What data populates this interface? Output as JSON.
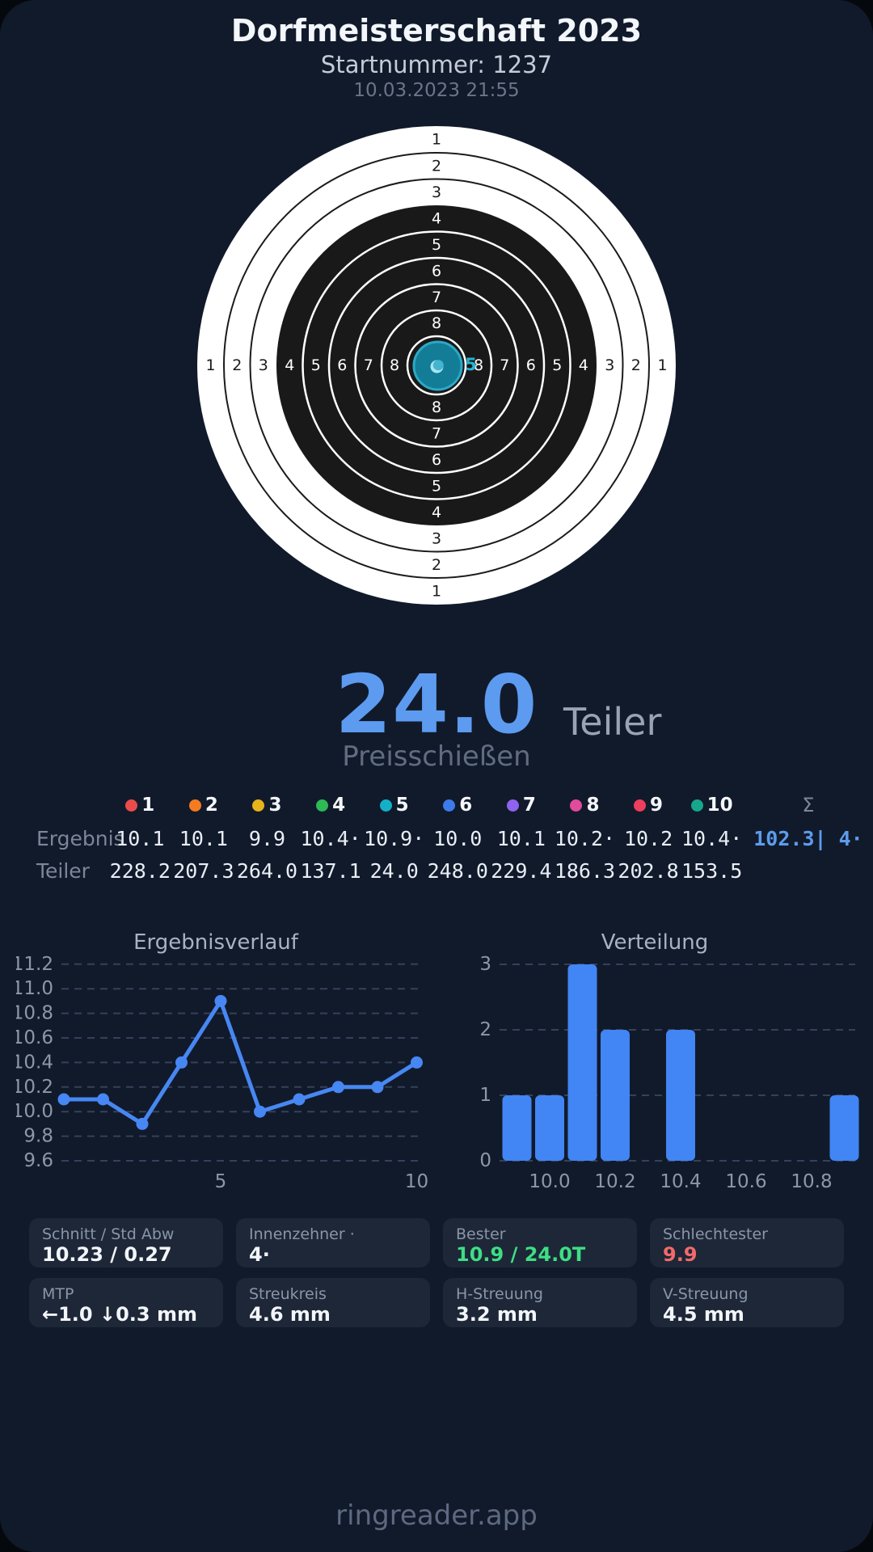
{
  "header": {
    "title": "Dorfmeisterschaft 2023",
    "subtitle": "Startnummer: 1237",
    "datetime": "10.03.2023 21:55"
  },
  "target": {
    "ring_labels": [
      1,
      2,
      3,
      4,
      5,
      6,
      7,
      8
    ],
    "best_shot_label": "5",
    "colors": {
      "paper_white": "#ffffff",
      "black_zone": "#191919",
      "shot_fill": "#137d97",
      "shot_stroke": "#2ba9c6",
      "shot_center_dot": "#43b5d1",
      "shot_center_glint": "#a9e4f0",
      "shot_label": "#23b5d6"
    }
  },
  "score": {
    "value": "24.0",
    "unit": "Teiler",
    "event": "Preisschießen"
  },
  "table": {
    "row_labels": {
      "result": "Ergebnis",
      "teiler": "Teiler"
    },
    "sum_symbol": "Σ",
    "sum_result": "102.3| 4·",
    "shots": [
      {
        "num": "1",
        "color": "#ea4c4c",
        "result": "10.1",
        "teiler": "228.2"
      },
      {
        "num": "2",
        "color": "#f57b20",
        "result": "10.1",
        "teiler": "207.3"
      },
      {
        "num": "3",
        "color": "#e7b31c",
        "result": "9.9",
        "teiler": "264.0"
      },
      {
        "num": "4",
        "color": "#2eb856",
        "result": "10.4·",
        "teiler": "137.1"
      },
      {
        "num": "5",
        "color": "#14b0c7",
        "result": "10.9·",
        "teiler": "24.0"
      },
      {
        "num": "6",
        "color": "#3d7bea",
        "result": "10.0",
        "teiler": "248.0"
      },
      {
        "num": "7",
        "color": "#8f63ef",
        "result": "10.1",
        "teiler": "229.4"
      },
      {
        "num": "8",
        "color": "#e24a9b",
        "result": "10.2·",
        "teiler": "186.3"
      },
      {
        "num": "9",
        "color": "#ee3e5e",
        "result": "10.2",
        "teiler": "202.8"
      },
      {
        "num": "10",
        "color": "#17a78c",
        "result": "10.4·",
        "teiler": "153.5"
      }
    ]
  },
  "chart_data": [
    {
      "type": "line",
      "title": "Ergebnisverlauf",
      "x": [
        1,
        2,
        3,
        4,
        5,
        6,
        7,
        8,
        9,
        10
      ],
      "values": [
        10.1,
        10.1,
        9.9,
        10.4,
        10.9,
        10.0,
        10.1,
        10.2,
        10.2,
        10.4
      ],
      "yticks": [
        9.6,
        9.8,
        10.0,
        10.2,
        10.4,
        10.6,
        10.8,
        11.0,
        11.2
      ],
      "xticks": [
        5,
        10
      ],
      "ylim": [
        9.6,
        11.2
      ],
      "grid": "dashed horizontal",
      "color": "#4787f3"
    },
    {
      "type": "bar",
      "title": "Verteilung",
      "bin_centers": [
        9.9,
        10.0,
        10.1,
        10.2,
        10.4,
        10.9
      ],
      "counts": [
        1,
        1,
        3,
        2,
        2,
        1
      ],
      "yticks": [
        0,
        1,
        2,
        3
      ],
      "xticks": [
        10.0,
        10.2,
        10.4,
        10.6,
        10.8
      ],
      "ylim": [
        0,
        3
      ],
      "xlim": [
        9.85,
        10.95
      ],
      "grid": "dashed horizontal",
      "color": "#4285f4"
    }
  ],
  "stats": {
    "cards": [
      {
        "label": "Schnitt / Std Abw",
        "value": "10.23 / 0.27",
        "tone": "default"
      },
      {
        "label": "Innenzehner ·",
        "value": "4·",
        "tone": "default"
      },
      {
        "label": "Bester",
        "value": "10.9 / 24.0T",
        "tone": "good"
      },
      {
        "label": "Schlechtester",
        "value": "9.9",
        "tone": "bad"
      },
      {
        "label": "MTP",
        "value": "←1.0 ↓0.3 mm",
        "tone": "default"
      },
      {
        "label": "Streukreis",
        "value": "4.6 mm",
        "tone": "default"
      },
      {
        "label": "H-Streuung",
        "value": "3.2 mm",
        "tone": "default"
      },
      {
        "label": "V-Streuung",
        "value": "4.5 mm",
        "tone": "default"
      }
    ]
  },
  "footer": {
    "brand": "ringreader.app"
  }
}
